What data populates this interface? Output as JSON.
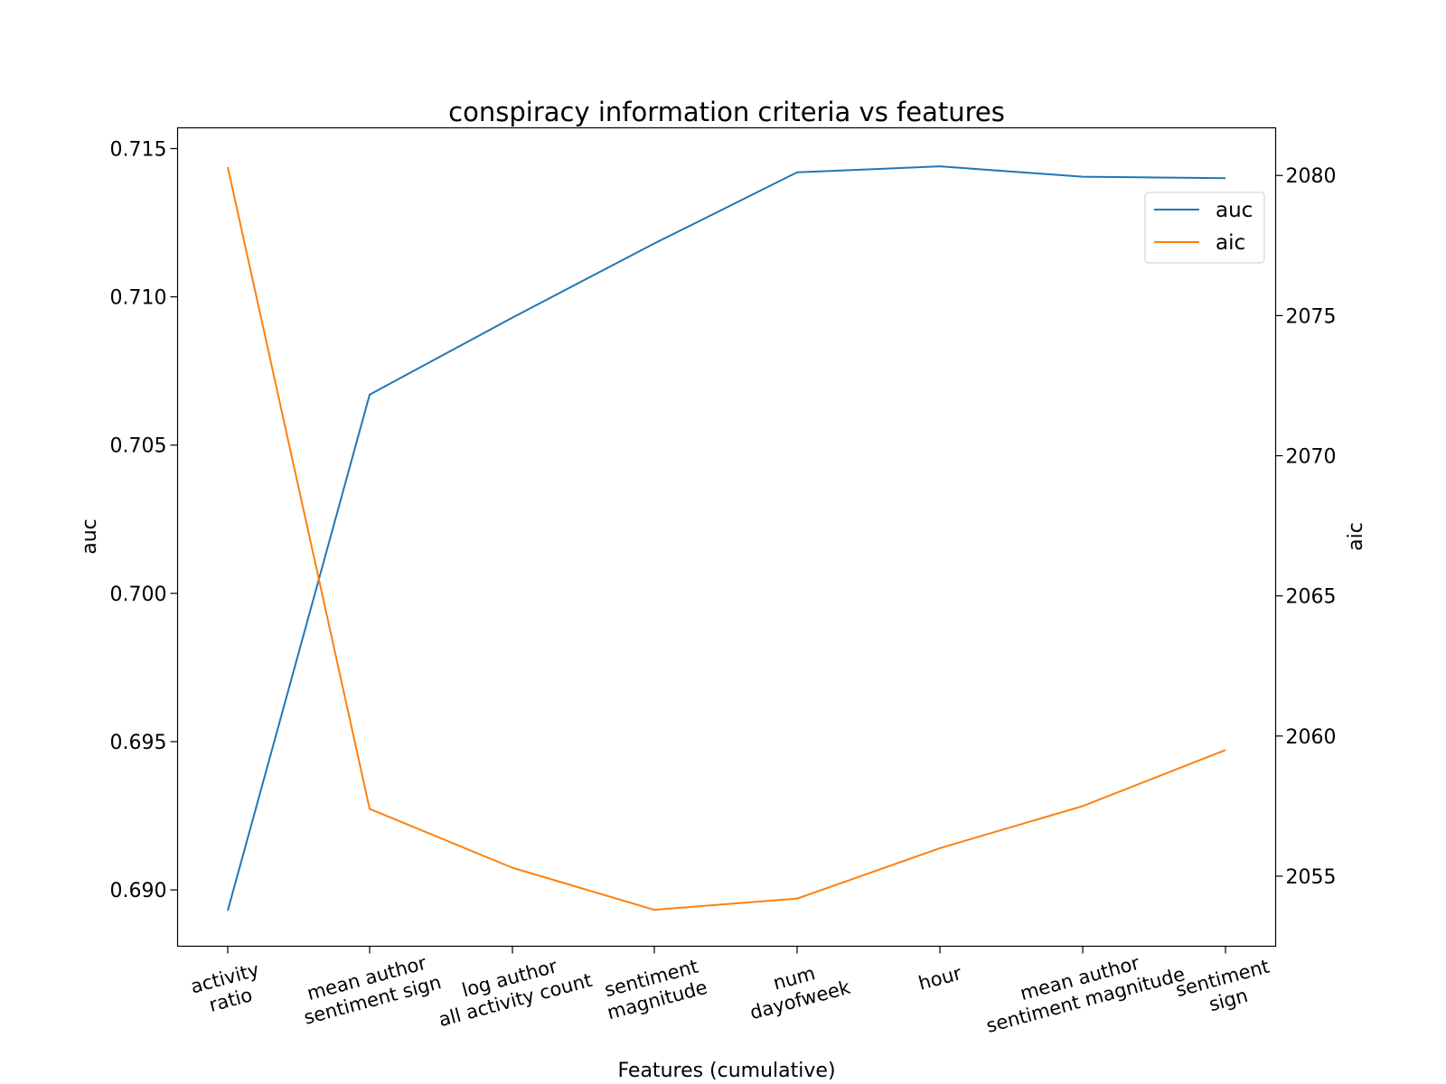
{
  "chart_data": {
    "type": "line",
    "title": "conspiracy information criteria vs features",
    "xlabel": "Features (cumulative)",
    "ylabel_left": "auc",
    "ylabel_right": "aic",
    "categories": [
      [
        "activity",
        "ratio"
      ],
      [
        "mean author",
        "sentiment sign"
      ],
      [
        "log author",
        "all activity count"
      ],
      [
        "sentiment",
        "magnitude"
      ],
      [
        "num",
        "dayofweek"
      ],
      [
        "hour"
      ],
      [
        "mean author",
        "sentiment magnitude"
      ],
      [
        "sentiment",
        "sign"
      ]
    ],
    "series": [
      {
        "name": "auc",
        "axis": "left",
        "color": "#1f77b4",
        "values": [
          0.6893,
          0.7067,
          0.7093,
          0.7118,
          0.7142,
          0.7144,
          0.71405,
          0.714
        ]
      },
      {
        "name": "aic",
        "axis": "right",
        "color": "#ff7f0e",
        "values": [
          2080.3,
          2057.4,
          2055.3,
          2053.8,
          2054.2,
          2056.0,
          2057.5,
          2059.5
        ]
      }
    ],
    "ylim_left": [
      0.6881,
      0.7157
    ],
    "ylim_right": [
      2052.5,
      2081.7
    ],
    "yticks_left": [
      "0.690",
      "0.695",
      "0.700",
      "0.705",
      "0.710",
      "0.715"
    ],
    "yticks_right": [
      "2055",
      "2060",
      "2065",
      "2070",
      "2075",
      "2080"
    ],
    "grid": false,
    "legend_position": "upper-right"
  }
}
